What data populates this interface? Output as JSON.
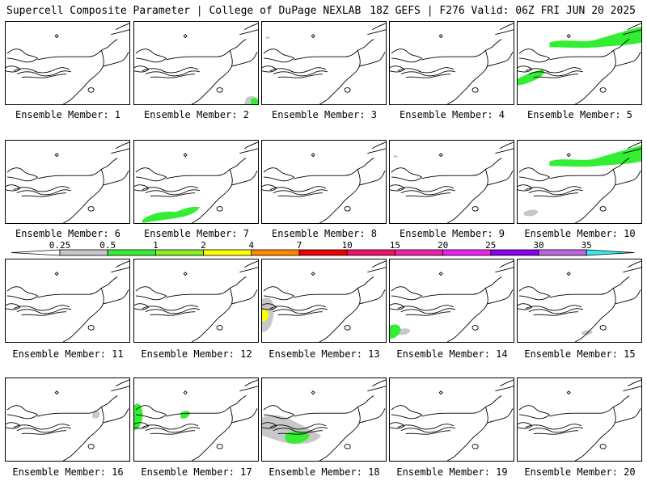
{
  "header": {
    "left_title": "Supercell Composite Parameter | College of DuPage NEXLAB",
    "right_title": "18Z GEFS | F276 Valid: 06Z FRI JUN 20 2025"
  },
  "colorbar": {
    "labels": [
      "0.25",
      "0.5",
      "1",
      "2",
      "4",
      "7",
      "10",
      "15",
      "20",
      "25",
      "30",
      "35"
    ],
    "colors": [
      "#c8c8c8",
      "#33ee33",
      "#88ee22",
      "#ffff00",
      "#ff8800",
      "#ee0000",
      "#ee1166",
      "#ee22aa",
      "#ee22ee",
      "#8800ee",
      "#bb66dd",
      "#33eeee"
    ]
  },
  "panels": [
    {
      "label": "Ensemble Member: 1",
      "shading": []
    },
    {
      "label": "Ensemble Member: 2",
      "shading": [
        "gray-se",
        "green-se"
      ]
    },
    {
      "label": "Ensemble Member: 3",
      "shading": [
        "gray-n"
      ]
    },
    {
      "label": "Ensemble Member: 4",
      "shading": []
    },
    {
      "label": "Ensemble Member: 5",
      "shading": [
        "green-ne",
        "green-lakes"
      ]
    },
    {
      "label": "Ensemble Member: 6",
      "shading": []
    },
    {
      "label": "Ensemble Member: 7",
      "shading": [
        "green-sw"
      ]
    },
    {
      "label": "Ensemble Member: 8",
      "shading": []
    },
    {
      "label": "Ensemble Member: 9",
      "shading": [
        "gray-n"
      ]
    },
    {
      "label": "Ensemble Member: 10",
      "shading": [
        "green-ne",
        "gray-sw"
      ]
    },
    {
      "label": "Ensemble Member: 11",
      "shading": []
    },
    {
      "label": "Ensemble Member: 12",
      "shading": []
    },
    {
      "label": "Ensemble Member: 13",
      "shading": [
        "gray-w",
        "yellow-w"
      ]
    },
    {
      "label": "Ensemble Member: 14",
      "shading": [
        "gray-sw",
        "green-sw2"
      ]
    },
    {
      "label": "Ensemble Member: 15",
      "shading": [
        "gray-se2"
      ]
    },
    {
      "label": "Ensemble Member: 16",
      "shading": [
        "gray-mid"
      ]
    },
    {
      "label": "Ensemble Member: 17",
      "shading": [
        "green-w",
        "green-mid"
      ]
    },
    {
      "label": "Ensemble Member: 18",
      "shading": [
        "gray-sw3",
        "green-sw3"
      ]
    },
    {
      "label": "Ensemble Member: 19",
      "shading": []
    },
    {
      "label": "Ensemble Member: 20",
      "shading": []
    }
  ]
}
